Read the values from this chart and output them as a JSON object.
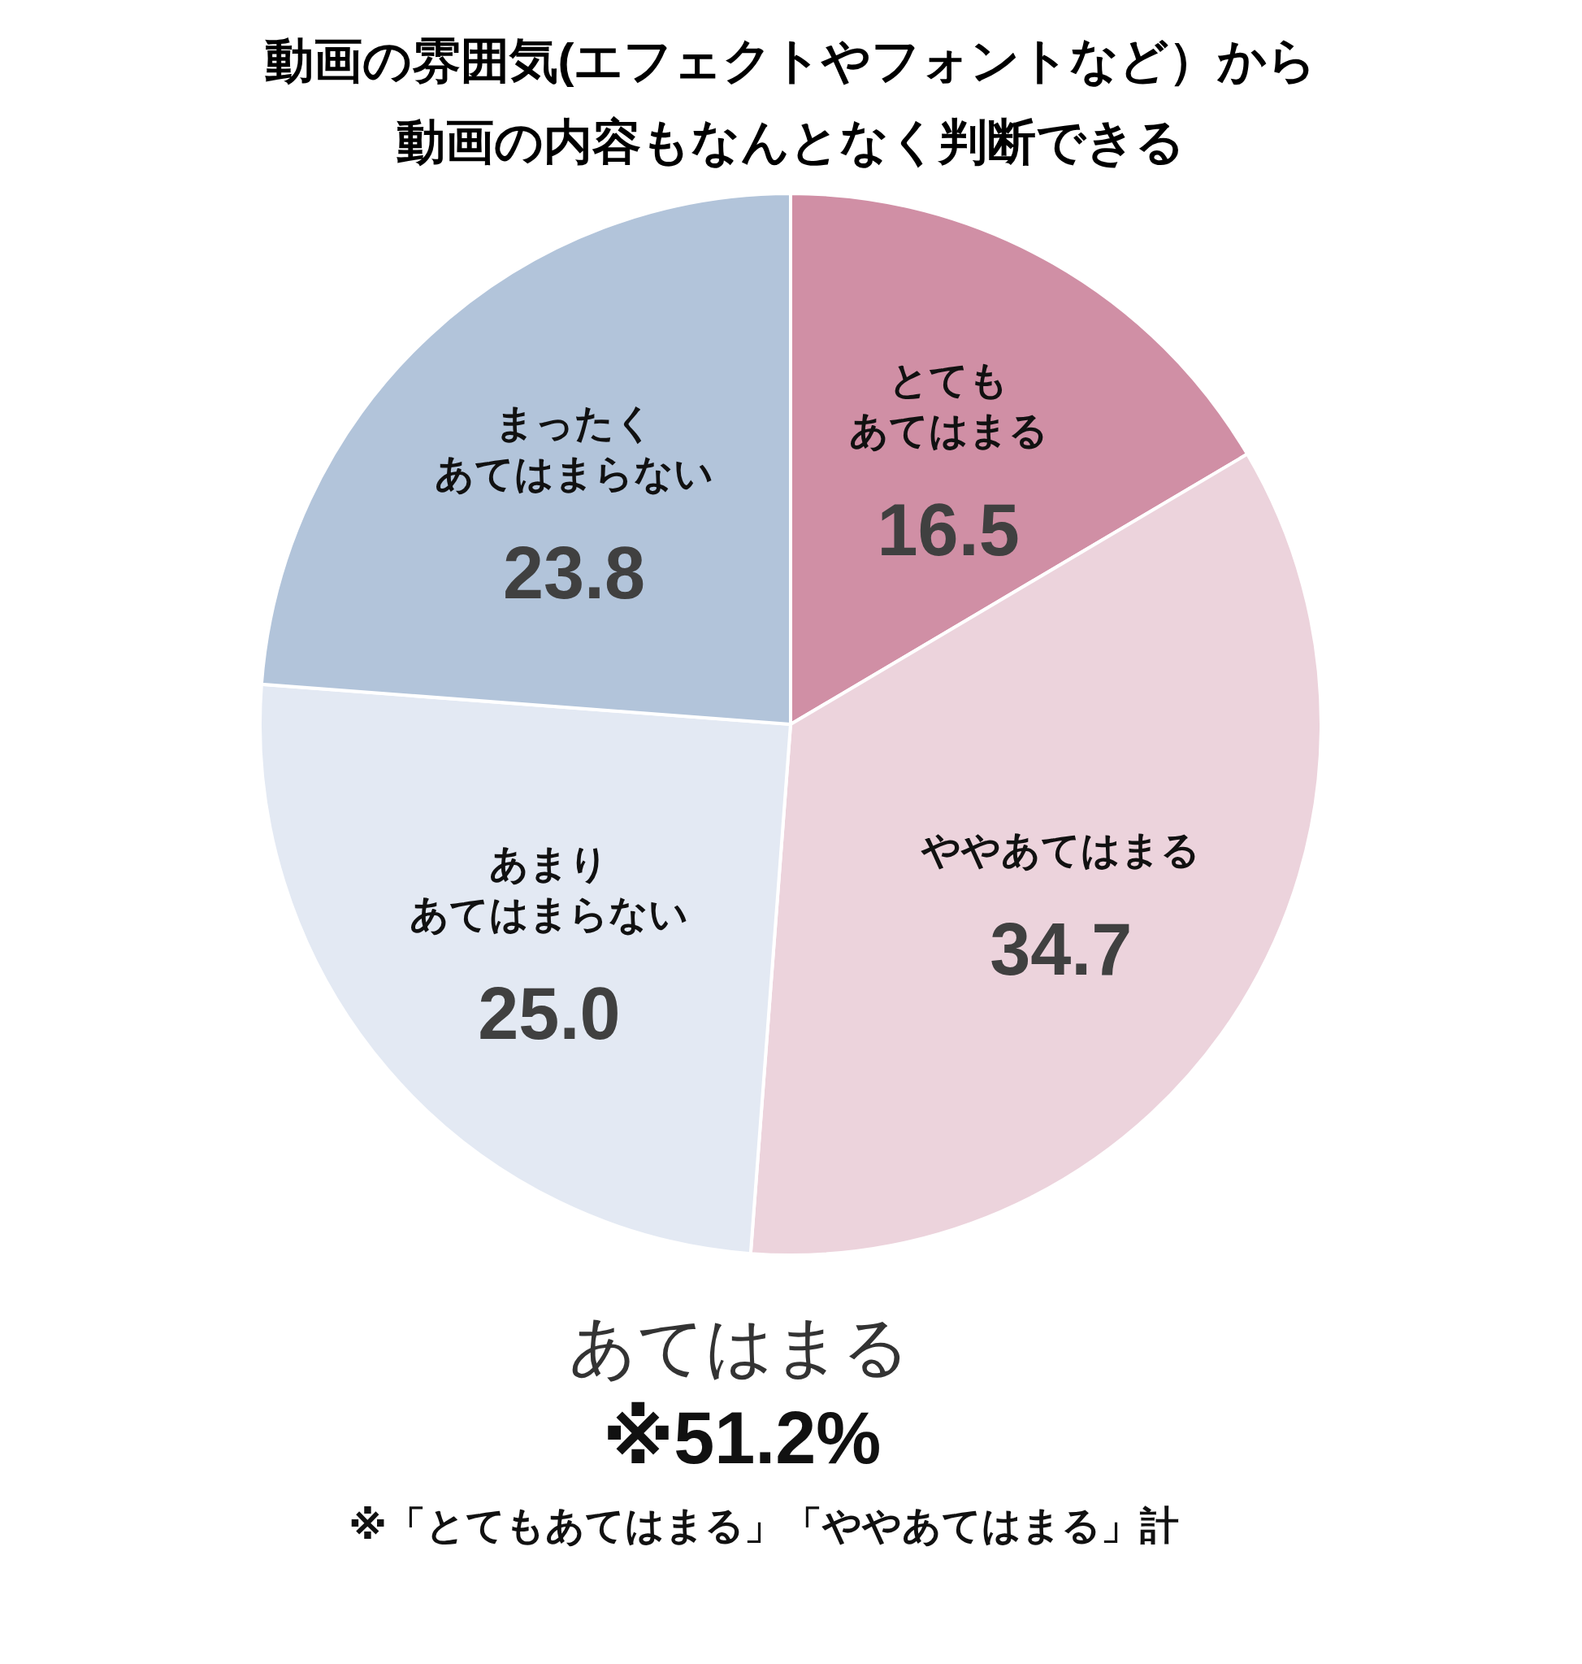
{
  "chart_data": {
    "type": "pie",
    "title": "動画の雰囲気(エフェクトやフォントなど）から動画の内容もなんとなく判断できる",
    "categories": [
      "とてもあてはまる",
      "ややあてはまる",
      "あまりあてはまらない",
      "まったくあてはまらない"
    ],
    "values": [
      16.5,
      34.7,
      25.0,
      23.8
    ],
    "value_labels": [
      "16.5",
      "34.7",
      "25.0",
      "23.8"
    ],
    "colors": [
      "#d08fa5",
      "#ecd3dc",
      "#e3e9f3",
      "#b2c4da"
    ],
    "annotations": [
      "あてはまる",
      "※51.2%",
      "※「とてもあてはまる」「ややあてはまる」計"
    ]
  }
}
